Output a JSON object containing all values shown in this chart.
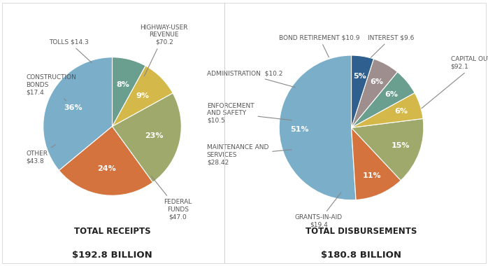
{
  "receipts": {
    "values": [
      36,
      24,
      23,
      9,
      8
    ],
    "pct_labels": [
      "36%",
      "24%",
      "23%",
      "9%",
      "8%"
    ],
    "colors": [
      "#7aaec9",
      "#d4733d",
      "#9ea96b",
      "#d4b84a",
      "#6a9e8e"
    ],
    "title": "TOTAL RECEIPTS",
    "subtitle": "$192.8 BILLION",
    "startangle": 90
  },
  "disbursements": {
    "values": [
      51,
      11,
      15,
      6,
      6,
      6,
      5
    ],
    "pct_labels": [
      "51%",
      "11%",
      "15%",
      "6%",
      "6%",
      "6%",
      "5%"
    ],
    "colors": [
      "#7aaec9",
      "#d4733d",
      "#9ea96b",
      "#d4b84a",
      "#6a9e8e",
      "#9e8e8e",
      "#2e5f8e"
    ],
    "title": "TOTAL DISBURSEMENTS",
    "subtitle": "$180.8 BILLION",
    "startangle": 90
  },
  "label_fontsize": 6.5,
  "pct_fontsize": 8,
  "title_fontsize": 8.5,
  "subtitle_fontsize": 9.5,
  "label_color": "#555555",
  "arrow_color": "#888888"
}
